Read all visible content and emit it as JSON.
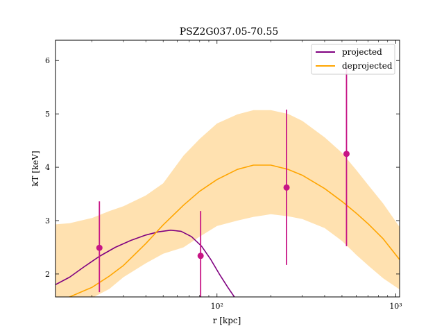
{
  "chart_data": {
    "type": "line",
    "title": "PSZ2G037.05-70.55",
    "xlabel": "r [kpc]",
    "ylabel": "kT [keV]",
    "xscale": "log",
    "xlim": [
      12.5,
      1050
    ],
    "ylim": [
      1.57,
      6.38
    ],
    "grid": false,
    "legend_position": "top-right",
    "x_ticks": [
      {
        "value": 100,
        "label": "10²"
      },
      {
        "value": 1000,
        "label": "10³"
      }
    ],
    "y_ticks": [
      2,
      3,
      4,
      5,
      6
    ],
    "colors": {
      "projected": "#800080",
      "deprojected": "#FFA500",
      "band": "#FFE1B0",
      "data": "#C71585"
    },
    "series": [
      {
        "name": "projected",
        "kind": "line",
        "x": [
          12.5,
          15,
          18,
          22,
          27,
          33,
          40,
          47,
          55,
          63,
          72,
          82,
          92,
          103,
          115,
          125
        ],
        "y": [
          1.8,
          1.94,
          2.13,
          2.33,
          2.5,
          2.63,
          2.73,
          2.79,
          2.82,
          2.8,
          2.7,
          2.52,
          2.28,
          2.0,
          1.75,
          1.57
        ]
      },
      {
        "name": "deprojected",
        "kind": "line",
        "x": [
          12.5,
          15,
          20,
          25,
          30,
          40,
          50,
          65,
          80,
          100,
          130,
          160,
          200,
          250,
          300,
          400,
          500,
          600,
          700,
          850,
          1050
        ],
        "y": [
          1.5,
          1.57,
          1.75,
          1.96,
          2.16,
          2.57,
          2.92,
          3.29,
          3.55,
          3.77,
          3.96,
          4.04,
          4.04,
          3.96,
          3.85,
          3.6,
          3.36,
          3.14,
          2.94,
          2.66,
          2.27
        ]
      }
    ],
    "band": {
      "x": [
        12.5,
        15,
        20,
        25,
        30,
        40,
        50,
        65,
        80,
        100,
        130,
        160,
        200,
        250,
        300,
        400,
        500,
        600,
        700,
        850,
        1050
      ],
      "upper": [
        2.93,
        2.95,
        3.05,
        3.18,
        3.27,
        3.47,
        3.7,
        4.22,
        4.53,
        4.82,
        4.99,
        5.07,
        5.07,
        5.0,
        4.87,
        4.56,
        4.27,
        3.95,
        3.67,
        3.32,
        2.88
      ],
      "lower": [
        1.3,
        1.35,
        1.55,
        1.72,
        1.94,
        2.2,
        2.38,
        2.5,
        2.7,
        2.9,
        3.0,
        3.07,
        3.12,
        3.08,
        3.03,
        2.86,
        2.62,
        2.36,
        2.16,
        1.92,
        1.71
      ]
    },
    "points": [
      {
        "x": 22,
        "y": 2.49,
        "ylo": 1.66,
        "yhi": 3.36
      },
      {
        "x": 81,
        "y": 2.34,
        "ylo": 1.57,
        "yhi": 3.18
      },
      {
        "x": 245,
        "y": 3.62,
        "ylo": 2.17,
        "yhi": 5.08
      },
      {
        "x": 530,
        "y": 4.25,
        "ylo": 2.52,
        "yhi": 5.87
      }
    ]
  }
}
